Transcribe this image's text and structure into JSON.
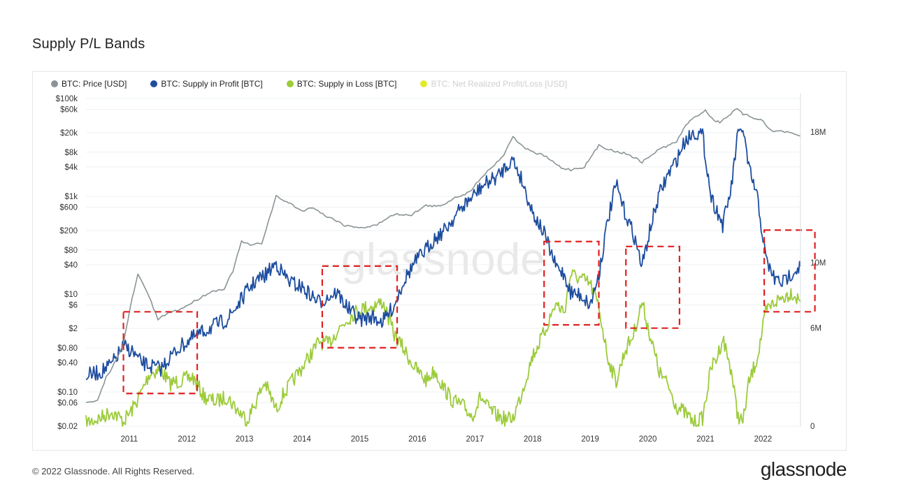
{
  "page": {
    "title": "Supply P/L Bands",
    "copyright": "© 2022 Glassnode. All Rights Reserved.",
    "brand": "glassnode",
    "watermark": "glassnode"
  },
  "colors": {
    "price": "#8a9496",
    "profit": "#1d4d9f",
    "loss": "#9ccb3b",
    "net": "#e3ea2b",
    "highlight_box": "#e02020",
    "grid": "#eef0f2"
  },
  "chart_data": {
    "type": "line",
    "title": "Supply P/L Bands",
    "legend": [
      {
        "name": "BTC: Price [USD]",
        "color": "#8a9496",
        "faded": false
      },
      {
        "name": "BTC: Supply in Profit [BTC]",
        "color": "#1d4d9f",
        "faded": false
      },
      {
        "name": "BTC: Supply in Loss [BTC]",
        "color": "#9ccb3b",
        "faded": false
      },
      {
        "name": "BTC: Net Realized Profit/Loss [USD]",
        "color": "#e3ea2b",
        "faded": true
      }
    ],
    "legend_position": "top-left",
    "x_ticks": [
      "2011",
      "2012",
      "2013",
      "2014",
      "2015",
      "2016",
      "2017",
      "2018",
      "2019",
      "2020",
      "2021",
      "2022"
    ],
    "x_range": [
      2010.55,
      2022.95
    ],
    "y_left_scale": "log",
    "y_left_ticks": [
      {
        "label": "$100k",
        "value": 100000
      },
      {
        "label": "$60k",
        "value": 60000
      },
      {
        "label": "$20k",
        "value": 20000
      },
      {
        "label": "$8k",
        "value": 8000
      },
      {
        "label": "$4k",
        "value": 4000
      },
      {
        "label": "$1k",
        "value": 1000
      },
      {
        "label": "$600",
        "value": 600
      },
      {
        "label": "$200",
        "value": 200
      },
      {
        "label": "$80",
        "value": 80
      },
      {
        "label": "$40",
        "value": 40
      },
      {
        "label": "$10",
        "value": 10
      },
      {
        "label": "$6",
        "value": 6
      },
      {
        "label": "$2",
        "value": 2
      },
      {
        "label": "$0.80",
        "value": 0.8
      },
      {
        "label": "$0.40",
        "value": 0.4
      },
      {
        "label": "$0.10",
        "value": 0.1
      },
      {
        "label": "$0.06",
        "value": 0.06
      },
      {
        "label": "$0.02",
        "value": 0.02
      }
    ],
    "y_left_range": [
      0.02,
      130000
    ],
    "y_right_ticks": [
      {
        "label": "18M",
        "value": 18000000
      },
      {
        "label": "10M",
        "value": 10000000
      },
      {
        "label": "6M",
        "value": 6000000
      },
      {
        "label": "0",
        "value": 0
      }
    ],
    "y_right_range": [
      0,
      20400000
    ],
    "series": [
      {
        "name": "BTC: Price [USD]",
        "axis": "left",
        "color": "#8a9496",
        "x": [
          2010.55,
          2010.75,
          2010.9,
          2011.0,
          2011.2,
          2011.35,
          2011.45,
          2011.6,
          2011.8,
          2011.95,
          2012.2,
          2012.5,
          2012.7,
          2012.95,
          2013.1,
          2013.25,
          2013.4,
          2013.6,
          2013.85,
          2013.92,
          2014.1,
          2014.3,
          2014.5,
          2014.7,
          2014.9,
          2015.05,
          2015.2,
          2015.4,
          2015.6,
          2015.8,
          2015.95,
          2016.2,
          2016.45,
          2016.7,
          2016.95,
          2017.2,
          2017.4,
          2017.6,
          2017.8,
          2017.96,
          2018.1,
          2018.3,
          2018.5,
          2018.8,
          2018.96,
          2019.2,
          2019.45,
          2019.7,
          2019.96,
          2020.2,
          2020.5,
          2020.8,
          2020.96,
          2021.1,
          2021.3,
          2021.45,
          2021.55,
          2021.7,
          2021.85,
          2021.95,
          2022.1,
          2022.3,
          2022.45,
          2022.6,
          2022.8,
          2022.95
        ],
        "values": [
          0.06,
          0.065,
          0.2,
          0.3,
          1.0,
          8,
          25,
          12,
          3,
          4,
          5,
          8,
          11,
          13,
          30,
          120,
          100,
          110,
          1000,
          900,
          700,
          500,
          600,
          400,
          320,
          250,
          240,
          230,
          260,
          380,
          430,
          420,
          650,
          620,
          950,
          1200,
          2400,
          4000,
          7000,
          17000,
          11000,
          8000,
          6800,
          3800,
          3500,
          4000,
          11000,
          8500,
          7300,
          5000,
          9200,
          13000,
          29000,
          40000,
          58000,
          35000,
          33000,
          45000,
          61000,
          48000,
          42000,
          35000,
          21000,
          22000,
          19000,
          17000
        ]
      },
      {
        "name": "BTC: Supply in Profit [BTC]",
        "axis": "right",
        "color": "#1d4d9f",
        "x": [
          2010.55,
          2010.8,
          2011.0,
          2011.2,
          2011.35,
          2011.5,
          2011.65,
          2011.85,
          2012.0,
          2012.2,
          2012.4,
          2012.6,
          2012.8,
          2013.0,
          2013.2,
          2013.35,
          2013.5,
          2013.65,
          2013.85,
          2013.95,
          2014.1,
          2014.3,
          2014.45,
          2014.6,
          2014.75,
          2014.9,
          2015.1,
          2015.3,
          2015.5,
          2015.7,
          2015.9,
          2016.05,
          2016.25,
          2016.45,
          2016.6,
          2016.75,
          2016.9,
          2017.1,
          2017.25,
          2017.4,
          2017.55,
          2017.7,
          2017.85,
          2017.96,
          2018.1,
          2018.3,
          2018.5,
          2018.7,
          2018.85,
          2018.96,
          2019.15,
          2019.3,
          2019.45,
          2019.6,
          2019.75,
          2019.9,
          2020.05,
          2020.2,
          2020.35,
          2020.5,
          2020.65,
          2020.8,
          2020.95,
          2021.1,
          2021.25,
          2021.4,
          2021.5,
          2021.6,
          2021.75,
          2021.85,
          2021.95,
          2022.05,
          2022.2,
          2022.35,
          2022.5,
          2022.65,
          2022.8,
          2022.95
        ],
        "values": [
          3.1,
          3.3,
          3.8,
          4.9,
          4.6,
          3.9,
          3.7,
          3.5,
          4.2,
          4.9,
          5.4,
          5.8,
          6.2,
          6.5,
          7.5,
          8.3,
          8.9,
          9.2,
          10.0,
          9.4,
          8.8,
          8.5,
          8.0,
          7.6,
          7.9,
          8.2,
          7.2,
          6.5,
          6.7,
          6.4,
          7.4,
          8.8,
          10.0,
          10.8,
          11.5,
          11.9,
          12.6,
          13.5,
          14.0,
          14.6,
          15.0,
          15.3,
          16.0,
          16.3,
          15.2,
          13.1,
          11.8,
          9.8,
          9.3,
          8.2,
          8.0,
          7.4,
          9.3,
          12.5,
          14.8,
          13.1,
          11.8,
          9.8,
          12.2,
          14.2,
          15.4,
          16.3,
          17.5,
          18.0,
          17.8,
          14.0,
          13.2,
          12.3,
          14.6,
          17.6,
          18.3,
          15.8,
          14.0,
          10.2,
          9.0,
          8.8,
          9.4,
          9.8
        ]
      },
      {
        "name": "BTC: Supply in Loss [BTC]",
        "axis": "right",
        "color": "#9ccb3b",
        "x": [
          2010.55,
          2010.8,
          2011.0,
          2011.2,
          2011.35,
          2011.5,
          2011.65,
          2011.85,
          2012.0,
          2012.2,
          2012.4,
          2012.6,
          2012.8,
          2013.0,
          2013.2,
          2013.35,
          2013.5,
          2013.65,
          2013.85,
          2013.95,
          2014.1,
          2014.3,
          2014.45,
          2014.6,
          2014.75,
          2014.9,
          2015.1,
          2015.3,
          2015.5,
          2015.7,
          2015.9,
          2016.05,
          2016.25,
          2016.45,
          2016.6,
          2016.75,
          2016.9,
          2017.1,
          2017.25,
          2017.4,
          2017.55,
          2017.7,
          2017.85,
          2017.96,
          2018.1,
          2018.3,
          2018.5,
          2018.7,
          2018.85,
          2018.96,
          2019.15,
          2019.3,
          2019.45,
          2019.6,
          2019.75,
          2019.9,
          2020.05,
          2020.2,
          2020.35,
          2020.5,
          2020.65,
          2020.8,
          2020.95,
          2021.1,
          2021.25,
          2021.4,
          2021.5,
          2021.6,
          2021.75,
          2021.85,
          2021.95,
          2022.05,
          2022.2,
          2022.35,
          2022.5,
          2022.65,
          2022.8,
          2022.95
        ],
        "values": [
          0.2,
          0.5,
          0.9,
          0.3,
          1.0,
          2.0,
          3.2,
          3.5,
          2.6,
          2.8,
          3.0,
          1.8,
          1.5,
          1.8,
          0.9,
          0.4,
          1.5,
          2.7,
          1.0,
          1.8,
          2.6,
          3.6,
          4.4,
          5.2,
          5.0,
          5.8,
          6.6,
          7.2,
          7.3,
          7.6,
          5.6,
          4.8,
          3.6,
          2.8,
          3.4,
          2.4,
          1.6,
          1.2,
          0.6,
          1.8,
          1.0,
          0.6,
          0.4,
          0.5,
          1.9,
          4.3,
          5.7,
          7.5,
          7.0,
          9.3,
          9.0,
          8.7,
          7.3,
          4.3,
          2.7,
          4.6,
          5.6,
          7.6,
          5.4,
          3.3,
          2.5,
          1.2,
          0.8,
          0.2,
          0.5,
          3.6,
          4.2,
          5.4,
          3.4,
          0.8,
          0.2,
          2.6,
          4.2,
          7.0,
          7.6,
          7.9,
          8.2,
          7.6
        ]
      }
    ],
    "highlight_boxes": [
      {
        "x0": 2011.2,
        "x1": 2012.48,
        "y0": 2,
        "y1": 7
      },
      {
        "x0": 2014.65,
        "x1": 2015.95,
        "y0": 4.8,
        "y1": 9.8
      },
      {
        "x0": 2018.5,
        "x1": 2019.45,
        "y0": 6.2,
        "y1": 11.3
      },
      {
        "x0": 2019.92,
        "x1": 2020.85,
        "y0": 6.0,
        "y1": 11.0
      },
      {
        "x0": 2022.32,
        "x1": 2023.2,
        "y0": 7.0,
        "y1": 12.0
      }
    ]
  }
}
